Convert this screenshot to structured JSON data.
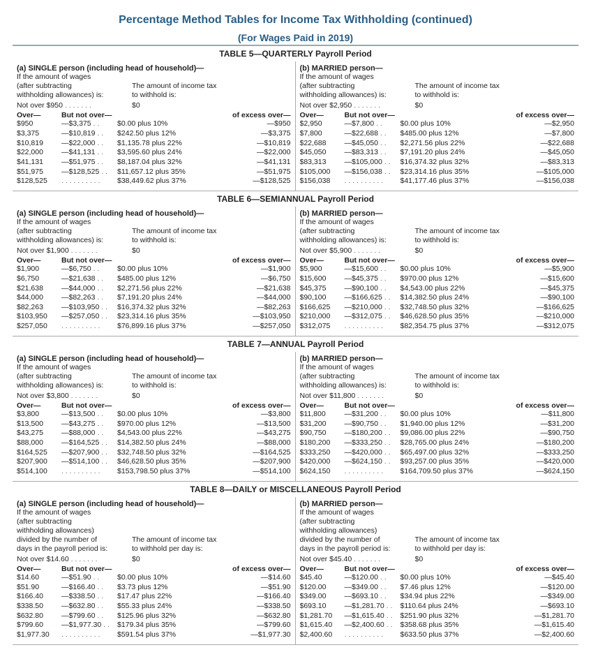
{
  "title": "Percentage Method Tables for Income Tax Withholding (continued)",
  "subtitle": "(For Wages Paid in 2019)",
  "tables": [
    {
      "label": "TABLE 5—QUARTERLY Payroll Period",
      "single": {
        "header": "(a) SINGLE person (including head of household)—",
        "intro1": "If the amount of wages",
        "intro2a": "(after subtracting",
        "intro2b": "The amount of income tax",
        "intro3a": "withholding allowances) is:",
        "intro3b": "to withhold is:",
        "notover_label": "Not over $950",
        "notover_value": "$0",
        "col_over": "Over—",
        "col_butnot": "But not over—",
        "col_excess": "of excess over—",
        "rows": [
          {
            "a": "$950",
            "b": "—$3,375",
            "c": "$0.00 plus 10%",
            "d": "—$950"
          },
          {
            "a": "$3,375",
            "b": "—$10,819",
            "c": "$242.50 plus 12%",
            "d": "—$3,375"
          },
          {
            "a": "$10,819",
            "b": "—$22,000",
            "c": "$1,135.78 plus 22%",
            "d": "—$10,819"
          },
          {
            "a": "$22,000",
            "b": "—$41,131",
            "c": "$3,595.60 plus 24%",
            "d": "—$22,000"
          },
          {
            "a": "$41,131",
            "b": "—$51,975",
            "c": "$8,187.04 plus 32%",
            "d": "—$41,131"
          },
          {
            "a": "$51,975",
            "b": "—$128,525",
            "c": "$11,657.12 plus 35%",
            "d": "—$51,975"
          },
          {
            "a": "$128,525",
            "b": ". . . . . . . . . .",
            "c": "$38,449.62 plus 37%",
            "d": "—$128,525"
          }
        ]
      },
      "married": {
        "header": "(b) MARRIED person—",
        "intro1": "If the amount of wages",
        "intro2a": "(after subtracting",
        "intro2b": "The amount of income tax",
        "intro3a": "withholding allowances) is:",
        "intro3b": "to withhold is:",
        "notover_label": "Not over $2,950",
        "notover_value": "$0",
        "col_over": "Over—",
        "col_butnot": "But not over—",
        "col_excess": "of excess over—",
        "rows": [
          {
            "a": "$2,950",
            "b": "—$7,800",
            "c": "$0.00 plus 10%",
            "d": "—$2,950"
          },
          {
            "a": "$7,800",
            "b": "—$22,688",
            "c": "$485.00 plus 12%",
            "d": "—$7,800"
          },
          {
            "a": "$22,688",
            "b": "—$45,050",
            "c": "$2,271.56 plus 22%",
            "d": "—$22,688"
          },
          {
            "a": "$45,050",
            "b": "—$83,313",
            "c": "$7,191.20 plus 24%",
            "d": "—$45,050"
          },
          {
            "a": "$83,313",
            "b": "—$105,000",
            "c": "$16,374.32 plus 32%",
            "d": "—$83,313"
          },
          {
            "a": "$105,000",
            "b": "—$156,038",
            "c": "$23,314.16 plus 35%",
            "d": "—$105,000"
          },
          {
            "a": "$156,038",
            "b": ". . . . . . . . . .",
            "c": "$41,177.46 plus 37%",
            "d": "—$156,038"
          }
        ]
      }
    },
    {
      "label": "TABLE 6—SEMIANNUAL Payroll Period",
      "single": {
        "header": "(a) SINGLE person (including head of household)—",
        "intro1": "If the amount of wages",
        "intro2a": "(after subtracting",
        "intro2b": "The amount of income tax",
        "intro3a": "withholding allowances) is:",
        "intro3b": "to withhold is:",
        "notover_label": "Not over $1,900",
        "notover_value": "$0",
        "col_over": "Over—",
        "col_butnot": "But not over—",
        "col_excess": "of excess over—",
        "rows": [
          {
            "a": "$1,900",
            "b": "—$6,750",
            "c": "$0.00 plus 10%",
            "d": "—$1,900"
          },
          {
            "a": "$6,750",
            "b": "—$21,638",
            "c": "$485.00 plus 12%",
            "d": "—$6,750"
          },
          {
            "a": "$21,638",
            "b": "—$44,000",
            "c": "$2,271.56 plus 22%",
            "d": "—$21,638"
          },
          {
            "a": "$44,000",
            "b": "—$82,263",
            "c": "$7,191.20 plus 24%",
            "d": "—$44,000"
          },
          {
            "a": "$82,263",
            "b": "—$103,950",
            "c": "$16,374.32 plus 32%",
            "d": "—$82,263"
          },
          {
            "a": "$103,950",
            "b": "—$257,050",
            "c": "$23,314.16 plus 35%",
            "d": "—$103,950"
          },
          {
            "a": "$257,050",
            "b": ". . . . . . . . . .",
            "c": "$76,899.16 plus 37%",
            "d": "—$257,050"
          }
        ]
      },
      "married": {
        "header": "(b) MARRIED person—",
        "intro1": "If the amount of wages",
        "intro2a": "(after subtracting",
        "intro2b": "The amount of income tax",
        "intro3a": "withholding allowances) is:",
        "intro3b": "to withhold is:",
        "notover_label": "Not over $5,900",
        "notover_value": "$0",
        "col_over": "Over—",
        "col_butnot": "But not over—",
        "col_excess": "of excess over—",
        "rows": [
          {
            "a": "$5,900",
            "b": "—$15,600",
            "c": "$0.00 plus 10%",
            "d": "—$5,900"
          },
          {
            "a": "$15,600",
            "b": "—$45,375",
            "c": "$970.00 plus 12%",
            "d": "—$15,600"
          },
          {
            "a": "$45,375",
            "b": "—$90,100",
            "c": "$4,543.00 plus 22%",
            "d": "—$45,375"
          },
          {
            "a": "$90,100",
            "b": "—$166,625",
            "c": "$14,382.50 plus 24%",
            "d": "—$90,100"
          },
          {
            "a": "$166,625",
            "b": "—$210,000",
            "c": "$32,748.50 plus 32%",
            "d": "—$166,625"
          },
          {
            "a": "$210,000",
            "b": "—$312,075",
            "c": "$46,628.50 plus 35%",
            "d": "—$210,000"
          },
          {
            "a": "$312,075",
            "b": ". . . . . . . . . .",
            "c": "$82,354.75 plus 37%",
            "d": "—$312,075"
          }
        ]
      }
    },
    {
      "label": "TABLE 7—ANNUAL Payroll Period",
      "single": {
        "header": "(a) SINGLE person (including head of household)—",
        "intro1": "If the amount of wages",
        "intro2a": "(after subtracting",
        "intro2b": "The amount of income tax",
        "intro3a": "withholding allowances) is:",
        "intro3b": "to withhold is:",
        "notover_label": "Not over $3,800",
        "notover_value": "$0",
        "col_over": "Over—",
        "col_butnot": "But not over—",
        "col_excess": "of excess over—",
        "rows": [
          {
            "a": "$3,800",
            "b": "—$13,500",
            "c": "$0.00 plus 10%",
            "d": "—$3,800"
          },
          {
            "a": "$13,500",
            "b": "—$43,275",
            "c": "$970.00 plus 12%",
            "d": "—$13,500"
          },
          {
            "a": "$43,275",
            "b": "—$88,000",
            "c": "$4,543.00 plus 22%",
            "d": "—$43,275"
          },
          {
            "a": "$88,000",
            "b": "—$164,525",
            "c": "$14,382.50 plus 24%",
            "d": "—$88,000"
          },
          {
            "a": "$164,525",
            "b": "—$207,900",
            "c": "$32,748.50 plus 32%",
            "d": "—$164,525"
          },
          {
            "a": "$207,900",
            "b": "—$514,100",
            "c": "$46,628.50 plus 35%",
            "d": "—$207,900"
          },
          {
            "a": "$514,100",
            "b": ". . . . . . . . . .",
            "c": "$153,798.50 plus 37%",
            "d": "—$514,100"
          }
        ]
      },
      "married": {
        "header": "(b) MARRIED person—",
        "intro1": "If the amount of wages",
        "intro2a": "(after subtracting",
        "intro2b": "The amount of income tax",
        "intro3a": "withholding allowances) is:",
        "intro3b": "to withhold is:",
        "notover_label": "Not over $11,800",
        "notover_value": "$0",
        "col_over": "Over—",
        "col_butnot": "But not over—",
        "col_excess": "of excess over—",
        "rows": [
          {
            "a": "$11,800",
            "b": "—$31,200",
            "c": "$0.00 plus 10%",
            "d": "—$11,800"
          },
          {
            "a": "$31,200",
            "b": "—$90,750",
            "c": "$1,940.00 plus 12%",
            "d": "—$31,200"
          },
          {
            "a": "$90,750",
            "b": "—$180,200",
            "c": "$9,086.00 plus 22%",
            "d": "—$90,750"
          },
          {
            "a": "$180,200",
            "b": "—$333,250",
            "c": "$28,765.00 plus 24%",
            "d": "—$180,200"
          },
          {
            "a": "$333,250",
            "b": "—$420,000",
            "c": "$65,497.00 plus 32%",
            "d": "—$333,250"
          },
          {
            "a": "$420,000",
            "b": "—$624,150",
            "c": "$93,257.00 plus 35%",
            "d": "—$420,000"
          },
          {
            "a": "$624,150",
            "b": ". . . . . . . . . .",
            "c": "$164,709.50 plus 37%",
            "d": "—$624,150"
          }
        ]
      }
    },
    {
      "label": "TABLE 8—DAILY or MISCELLANEOUS Payroll Period",
      "single": {
        "header": "(a) SINGLE person (including head of household)—",
        "intro1": "If the amount of wages",
        "intro2a": "(after subtracting",
        "intro2b": "",
        "intro2c": "withholding allowances)",
        "intro3a": "divided by the number of",
        "intro3b": "The amount of income tax",
        "intro4a": "days in the payroll period is:",
        "intro4b": "to withhold per day is:",
        "notover_label": "Not over $14.60",
        "notover_value": "$0",
        "col_over": "Over—",
        "col_butnot": "But not over—",
        "col_excess": "of excess over—",
        "rows": [
          {
            "a": "$14.60",
            "b": "—$51.90",
            "c": "$0.00 plus 10%",
            "d": "—$14.60"
          },
          {
            "a": "$51.90",
            "b": "—$166.40",
            "c": "$3.73 plus 12%",
            "d": "—$51.90"
          },
          {
            "a": "$166.40",
            "b": "—$338.50",
            "c": "$17.47 plus 22%",
            "d": "—$166.40"
          },
          {
            "a": "$338.50",
            "b": "—$632.80",
            "c": "$55.33 plus 24%",
            "d": "—$338.50"
          },
          {
            "a": "$632.80",
            "b": "—$799.60",
            "c": "$125.96 plus 32%",
            "d": "—$632.80"
          },
          {
            "a": "$799.60",
            "b": "—$1,977.30",
            "c": "$179.34 plus 35%",
            "d": "—$799.60"
          },
          {
            "a": "$1,977.30",
            "b": ". . . . . . . . . .",
            "c": "$591.54 plus 37%",
            "d": "—$1,977.30"
          }
        ]
      },
      "married": {
        "header": "(b) MARRIED person—",
        "intro1": "If the amount of wages",
        "intro2a": "(after subtracting",
        "intro2b": "",
        "intro2c": "withholding allowances)",
        "intro3a": "divided by the number of",
        "intro3b": "The amount of income tax",
        "intro4a": "days in the payroll period is:",
        "intro4b": "to withhold per day is:",
        "notover_label": "Not over $45.40",
        "notover_value": "$0",
        "col_over": "Over—",
        "col_butnot": "But not over—",
        "col_excess": "of excess over—",
        "rows": [
          {
            "a": "$45.40",
            "b": "—$120.00",
            "c": "$0.00 plus 10%",
            "d": "—$45.40"
          },
          {
            "a": "$120.00",
            "b": "—$349.00",
            "c": "$7.46 plus 12%",
            "d": "—$120.00"
          },
          {
            "a": "$349.00",
            "b": "—$693.10",
            "c": "$34.94 plus 22%",
            "d": "—$349.00"
          },
          {
            "a": "$693.10",
            "b": "—$1,281.70",
            "c": "$110.64 plus 24%",
            "d": "—$693.10"
          },
          {
            "a": "$1,281.70",
            "b": "—$1,615.40",
            "c": "$251.90 plus 32%",
            "d": "—$1,281.70"
          },
          {
            "a": "$1,615.40",
            "b": "—$2,400.60",
            "c": "$358.68 plus 35%",
            "d": "—$1,615.40"
          },
          {
            "a": "$2,400.60",
            "b": ". . . . . . . . . .",
            "c": "$633.50 plus 37%",
            "d": "—$2,400.60"
          }
        ]
      }
    }
  ],
  "style": {
    "title_color": "#285e86",
    "title_fontsize": 16,
    "subtitle_fontsize": 14,
    "body_fontsize": 11,
    "row_fontsize": 10.5,
    "rule_color": "#9aa",
    "border_color": "#aaa",
    "text_color": "#222",
    "background": "#ffffff",
    "col_widths": {
      "c1": 64,
      "c2": 78,
      "c4": 84
    }
  }
}
